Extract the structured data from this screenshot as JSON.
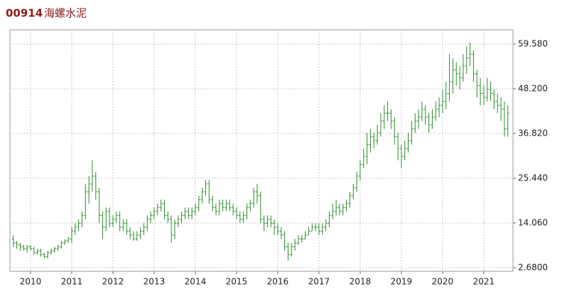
{
  "header": {
    "code": "00914",
    "name": "海螺水泥"
  },
  "chart_data": {
    "type": "ohlc",
    "color": "#2e8b2e",
    "grid": true,
    "categories": [
      null,
      null,
      null,
      null,
      null,
      "2010",
      null,
      null,
      null,
      null,
      null,
      null,
      null,
      null,
      null,
      null,
      null,
      "2011",
      null,
      null,
      null,
      null,
      null,
      null,
      null,
      null,
      null,
      null,
      null,
      "2012",
      null,
      null,
      null,
      null,
      null,
      null,
      null,
      null,
      null,
      null,
      null,
      "2013",
      null,
      null,
      null,
      null,
      null,
      null,
      null,
      null,
      null,
      null,
      null,
      "2014",
      null,
      null,
      null,
      null,
      null,
      null,
      null,
      null,
      null,
      null,
      null,
      "2015",
      null,
      null,
      null,
      null,
      null,
      null,
      null,
      null,
      null,
      null,
      null,
      "2016",
      null,
      null,
      null,
      null,
      null,
      null,
      null,
      null,
      null,
      null,
      null,
      "2017",
      null,
      null,
      null,
      null,
      null,
      null,
      null,
      null,
      null,
      null,
      null,
      "2018",
      null,
      null,
      null,
      null,
      null,
      null,
      null,
      null,
      null,
      null,
      null,
      "2019",
      null,
      null,
      null,
      null,
      null,
      null,
      null,
      null,
      null,
      null,
      null,
      "2020",
      null,
      null,
      null,
      null,
      null,
      null,
      null,
      null,
      null,
      null,
      null,
      "2021",
      null,
      null,
      null,
      null,
      null,
      null,
      null
    ],
    "open": [
      10,
      9,
      8.5,
      8,
      7.5,
      8,
      7.5,
      6.5,
      7,
      6,
      5.5,
      6.5,
      7,
      7.5,
      8,
      9,
      9.5,
      10,
      12,
      13,
      14,
      16,
      22,
      24,
      26,
      22,
      16,
      13,
      17,
      14,
      15,
      16,
      13,
      14,
      12,
      11,
      10,
      11,
      12,
      13,
      15,
      16,
      17,
      18,
      19,
      16,
      15,
      11,
      14,
      15,
      16,
      17,
      16,
      17,
      18,
      20,
      22,
      24,
      20,
      18,
      17,
      19,
      18,
      19,
      18,
      17,
      16,
      15,
      16,
      18,
      19,
      22,
      21,
      15,
      14,
      15,
      14,
      13,
      12,
      11,
      8,
      6,
      8,
      9,
      10,
      10,
      11,
      12,
      13,
      13,
      12,
      13,
      14,
      16,
      17,
      18,
      17,
      18,
      19,
      21,
      23,
      26,
      29,
      31,
      34,
      36,
      35,
      37,
      40,
      42,
      42,
      40,
      36,
      33,
      31,
      33,
      35,
      38,
      40,
      41,
      43,
      41,
      39,
      41,
      43,
      44,
      45,
      47,
      50,
      53,
      52,
      51,
      54,
      56,
      57,
      52,
      49,
      47,
      46,
      48,
      47,
      45,
      44,
      43,
      38
    ],
    "high": [
      11,
      9.5,
      9,
      8.5,
      8.5,
      8.5,
      8,
      7.5,
      7.5,
      6.5,
      7,
      7.5,
      8,
      8.5,
      9.5,
      10,
      10.5,
      13,
      14,
      15,
      17,
      24,
      26,
      30,
      27,
      23,
      17,
      18,
      18,
      16,
      17,
      17,
      15,
      15,
      13,
      12,
      12,
      13,
      14,
      16,
      17,
      18,
      19,
      20,
      20,
      17,
      16,
      15,
      16,
      17,
      18,
      18,
      18,
      19,
      21,
      23,
      25,
      25,
      21,
      19,
      20,
      20,
      20,
      20,
      19,
      18,
      17,
      17,
      19,
      20,
      23,
      24,
      22,
      16,
      16,
      16,
      15,
      14,
      13,
      12,
      9,
      9,
      10,
      11,
      11,
      12,
      13,
      14,
      14,
      14,
      14,
      15,
      17,
      19,
      20,
      19,
      19,
      20,
      22,
      24,
      27,
      30,
      33,
      37,
      38,
      37,
      39,
      42,
      44,
      45,
      43,
      41,
      37,
      34,
      35,
      37,
      40,
      42,
      43,
      45,
      44,
      42,
      43,
      45,
      46,
      48,
      50,
      57,
      56,
      55,
      54,
      57,
      59,
      60,
      58,
      53,
      51,
      49,
      51,
      50,
      48,
      47,
      46,
      45,
      44
    ],
    "low": [
      8,
      7.5,
      7,
      7,
      6.5,
      7,
      6,
      6,
      5.5,
      5,
      5,
      6,
      6.5,
      7,
      7.5,
      8.5,
      9,
      9,
      11,
      12,
      13,
      15,
      19,
      22,
      20,
      14,
      10,
      12,
      13,
      13,
      14,
      12,
      12,
      11,
      10,
      9.5,
      9.5,
      10,
      11,
      12,
      14,
      15,
      16,
      17,
      15,
      14,
      9,
      10,
      13,
      14,
      15,
      15,
      15,
      16,
      17,
      19,
      21,
      19,
      17,
      16,
      16,
      17,
      17,
      17,
      16,
      15,
      14,
      14,
      15,
      17,
      18,
      19,
      14,
      12,
      13,
      13,
      11,
      11,
      10,
      7,
      4.5,
      5.5,
      7,
      8.5,
      9,
      10,
      11,
      12,
      12,
      11,
      11,
      12,
      13,
      15,
      16,
      16,
      16,
      17,
      18,
      20,
      22,
      25,
      28,
      29,
      32,
      33,
      34,
      36,
      38,
      40,
      38,
      34,
      30,
      28,
      30,
      32,
      34,
      37,
      38,
      40,
      39,
      37,
      38,
      40,
      41,
      42,
      43,
      45,
      47,
      49,
      48,
      50,
      52,
      54,
      50,
      46,
      44,
      44,
      45,
      45,
      43,
      42,
      40,
      36,
      36
    ],
    "close": [
      9,
      8.5,
      8,
      7.5,
      8,
      7.5,
      6.5,
      7,
      6,
      5.5,
      6.5,
      7,
      7.5,
      8,
      9,
      9.5,
      10,
      12,
      13,
      14,
      16,
      22,
      24,
      26,
      22,
      16,
      13,
      17,
      14,
      15,
      16,
      13,
      14,
      12,
      11,
      10,
      11,
      12,
      13,
      15,
      16,
      17,
      18,
      19,
      16,
      15,
      11,
      14,
      15,
      16,
      17,
      16,
      17,
      18,
      20,
      22,
      24,
      20,
      18,
      17,
      19,
      18,
      19,
      18,
      17,
      16,
      15,
      16,
      18,
      19,
      22,
      21,
      15,
      14,
      15,
      14,
      13,
      12,
      11,
      8,
      6,
      8,
      9,
      10,
      10,
      11,
      12,
      13,
      13,
      12,
      13,
      14,
      16,
      17,
      18,
      17,
      18,
      19,
      21,
      23,
      26,
      29,
      31,
      34,
      36,
      35,
      37,
      40,
      42,
      42,
      40,
      36,
      33,
      31,
      33,
      35,
      38,
      40,
      41,
      43,
      41,
      39,
      41,
      43,
      44,
      45,
      47,
      50,
      53,
      52,
      51,
      54,
      56,
      57,
      52,
      49,
      47,
      46,
      48,
      47,
      45,
      44,
      43,
      38,
      42
    ],
    "ylim": [
      1.78,
      63.19
    ],
    "yticks": [
      {
        "value": 2.68,
        "label": "2.6800"
      },
      {
        "value": 14.06,
        "label": "14.060"
      },
      {
        "value": 25.44,
        "label": "25.440"
      },
      {
        "value": 36.82,
        "label": "36.820"
      },
      {
        "value": 48.2,
        "label": "48.200"
      },
      {
        "value": 59.58,
        "label": "59.580"
      }
    ]
  }
}
